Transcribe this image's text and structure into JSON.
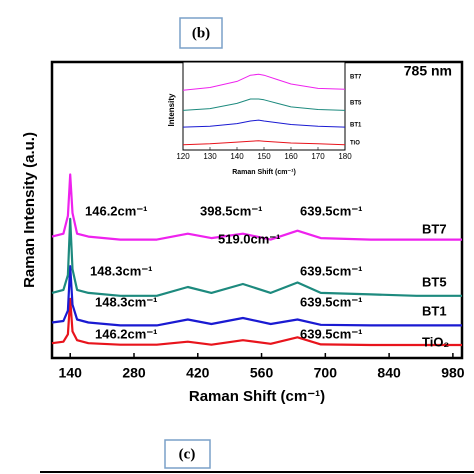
{
  "panel_labels": [
    "(b)",
    "(c)"
  ],
  "chart_data": [
    {
      "type": "line",
      "xlabel": "Raman Shift (cm⁻¹)",
      "ylabel": "Raman Intensity (a.u.)",
      "note": "785 nm",
      "x": [
        100,
        125,
        135,
        140,
        145,
        155,
        180,
        250,
        330,
        398,
        450,
        519,
        580,
        639,
        690,
        800,
        900,
        1000
      ],
      "xlim": [
        100,
        1000
      ],
      "xticks": [
        140,
        280,
        420,
        560,
        700,
        840,
        980
      ],
      "ylim": [
        0,
        100
      ],
      "series": [
        {
          "name": "TiO₂",
          "color": "#e8141c",
          "values": [
            5,
            5.5,
            8,
            20,
            9,
            6,
            5,
            4.5,
            4.5,
            5.5,
            4.5,
            6,
            4.8,
            7,
            4.6,
            4.4,
            4.4,
            4.4
          ]
        },
        {
          "name": "BT1",
          "color": "#1a1ad2",
          "values": [
            12,
            12.5,
            16,
            31,
            18,
            13,
            12,
            11,
            11,
            13,
            11.5,
            13.5,
            11.5,
            13,
            11.2,
            11,
            11,
            11
          ]
        },
        {
          "name": "BT5",
          "color": "#1d8a7e",
          "values": [
            22,
            23,
            28,
            47,
            30,
            23,
            22,
            21,
            21,
            24,
            22,
            25,
            22,
            25.5,
            22,
            21.5,
            21,
            21
          ]
        },
        {
          "name": "BT7",
          "color": "#ee22ee",
          "values": [
            41,
            42,
            48,
            62,
            49,
            42,
            41,
            40,
            40,
            42,
            40.5,
            42,
            40,
            43,
            40.5,
            40,
            40,
            40
          ]
        }
      ],
      "annotations": [
        "146.2cm⁻¹",
        "398.5cm⁻¹",
        "639.5cm⁻¹",
        "519.0cm⁻¹",
        "148.3cm⁻¹",
        "639.5cm⁻¹",
        "148.3cm⁻¹",
        "639.5cm⁻¹",
        "146.2cm⁻¹",
        "639.5cm⁻¹"
      ]
    },
    {
      "type": "line",
      "xlabel": "Raman Shift (cm⁻¹)",
      "ylabel": "Intensity",
      "x": [
        120,
        130,
        140,
        145,
        148,
        150,
        155,
        160,
        170,
        180
      ],
      "xlim": [
        120,
        180
      ],
      "xticks": [
        120,
        130,
        140,
        150,
        160,
        170,
        180
      ],
      "ylim": [
        0,
        100
      ],
      "series": [
        {
          "name": "TiO",
          "color": "#e8141c",
          "values": [
            6,
            7,
            9,
            10,
            10.5,
            10,
            9,
            8,
            7,
            6
          ]
        },
        {
          "name": "BT1",
          "color": "#1a1ad2",
          "values": [
            26,
            27,
            30,
            33,
            34,
            33,
            31,
            29,
            27,
            26
          ]
        },
        {
          "name": "BT5",
          "color": "#1d8a7e",
          "values": [
            45,
            47,
            53,
            58,
            58,
            57,
            53,
            49,
            46,
            45
          ]
        },
        {
          "name": "BT7",
          "color": "#ee22ee",
          "values": [
            68,
            71,
            78,
            85,
            86,
            85,
            80,
            75,
            70,
            69
          ]
        }
      ]
    }
  ]
}
